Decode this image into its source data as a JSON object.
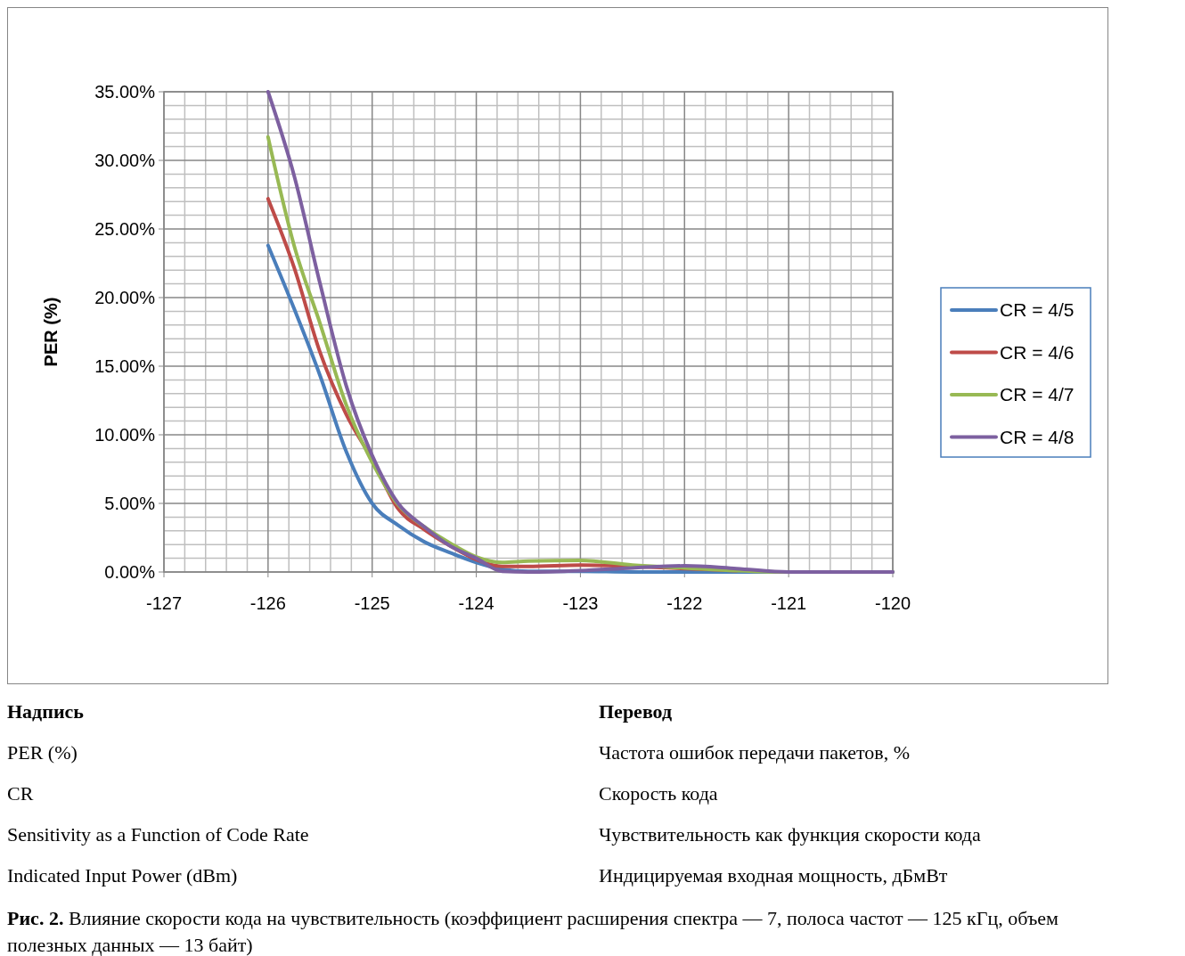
{
  "chart_data": {
    "type": "line",
    "ylabel": "PER (%)",
    "x": [
      -126,
      -125.75,
      -125.5,
      -125.25,
      -125,
      -124.75,
      -124.5,
      -124.25,
      -124,
      -123.75,
      -123.5,
      -123,
      -122.5,
      -122,
      -121.5,
      -121,
      -120.5,
      -120
    ],
    "series": [
      {
        "name": "CR = 4/5",
        "color": "#4a7ebb",
        "values": [
          23.8,
          19.2,
          14.3,
          8.8,
          5.0,
          3.4,
          2.2,
          1.4,
          0.7,
          0.2,
          0.05,
          0.05,
          0,
          0,
          0,
          0,
          0,
          0
        ]
      },
      {
        "name": "CR = 4/6",
        "color": "#be4b48",
        "values": [
          27.2,
          22.2,
          16.0,
          11.5,
          8.2,
          4.6,
          3.1,
          1.9,
          0.9,
          0.4,
          0.4,
          0.5,
          0.4,
          0.25,
          0.1,
          null,
          null,
          null
        ]
      },
      {
        "name": "CR = 4/7",
        "color": "#98b954",
        "values": [
          31.7,
          23.8,
          18.1,
          12.2,
          8.0,
          4.9,
          3.3,
          2.1,
          1.1,
          0.7,
          0.8,
          0.85,
          0.5,
          0.3,
          0.1,
          0,
          0,
          0
        ]
      },
      {
        "name": "CR = 4/8",
        "color": "#7d60a0",
        "values": [
          35,
          28.9,
          21.0,
          13.6,
          8.5,
          5.0,
          3.3,
          1.9,
          1.0,
          0.05,
          0,
          0.1,
          0.3,
          0.45,
          0.25,
          0,
          0,
          0
        ]
      }
    ],
    "xlim": [
      -127,
      -120
    ],
    "xticks": [
      -127,
      -126,
      -125,
      -124,
      -123,
      -122,
      -121,
      -120
    ],
    "ylim": [
      0,
      35
    ],
    "yticks": [
      {
        "value": 0,
        "label": "0.00%"
      },
      {
        "value": 5,
        "label": "5.00%"
      },
      {
        "value": 10,
        "label": "10.00%"
      },
      {
        "value": 15,
        "label": "15.00%"
      },
      {
        "value": 20,
        "label": "20.00%"
      },
      {
        "value": 25,
        "label": "25.00%"
      },
      {
        "value": 30,
        "label": "30.00%"
      },
      {
        "value": 35,
        "label": "35.00%"
      }
    ],
    "grid": true,
    "legend": "right",
    "marker": "none",
    "line_style": "solid",
    "annotations": [
      "Надпись",
      "Перевод",
      "PER (%)",
      "Частота ошибок передачи пакетов, %",
      "CR",
      "Скорость кода",
      "Sensitivity as a Function of Code Rate",
      "Чувствительность как функция скорости кода",
      "Indicated Input Power (dBm)",
      "Индицируемая входная мощность, дБмВт",
      "Рис. 2.",
      "Влияние скорости кода на чувствительность (коэффициент расширения спектра — 7, полоса частот — 125 кГц, объем полезных данных — 13 байт)"
    ]
  }
}
